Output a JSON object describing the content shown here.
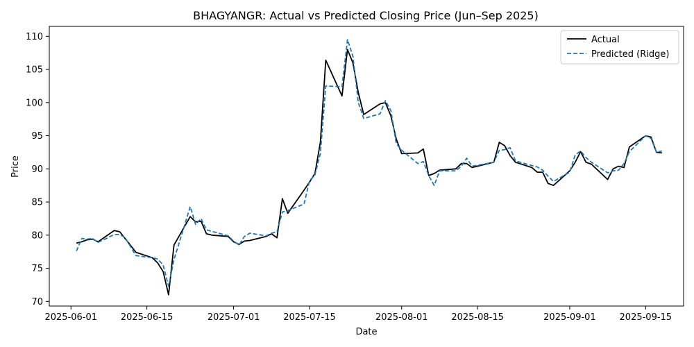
{
  "chart_data": {
    "type": "line",
    "title": "BHAGYANGR: Actual vs Predicted Closing Price (Jun–Sep 2025)",
    "xlabel": "Date",
    "ylabel": "Price",
    "xlim": [
      "2025-05-28",
      "2025-09-22"
    ],
    "ylim": [
      69.3,
      111.5
    ],
    "x_ticks": [
      "2025-06-01",
      "2025-06-15",
      "2025-07-01",
      "2025-07-15",
      "2025-08-01",
      "2025-08-15",
      "2025-09-01",
      "2025-09-15"
    ],
    "y_ticks": [
      70,
      75,
      80,
      85,
      90,
      95,
      100,
      105,
      110
    ],
    "grid": false,
    "legend_position": "top-right",
    "series": [
      {
        "name": "Actual",
        "color": "#000000",
        "style": "solid",
        "points": [
          [
            "2025-06-02",
            78.8
          ],
          [
            "2025-06-03",
            79.0
          ],
          [
            "2025-06-04",
            79.3
          ],
          [
            "2025-06-05",
            79.4
          ],
          [
            "2025-06-06",
            79.0
          ],
          [
            "2025-06-09",
            80.7
          ],
          [
            "2025-06-10",
            80.5
          ],
          [
            "2025-06-13",
            77.4
          ],
          [
            "2025-06-16",
            76.6
          ],
          [
            "2025-06-17",
            75.8
          ],
          [
            "2025-06-18",
            74.5
          ],
          [
            "2025-06-19",
            71.0
          ],
          [
            "2025-06-20",
            78.5
          ],
          [
            "2025-06-23",
            82.8
          ],
          [
            "2025-06-24",
            82.0
          ],
          [
            "2025-06-25",
            82.1
          ],
          [
            "2025-06-26",
            80.2
          ],
          [
            "2025-06-27",
            80.0
          ],
          [
            "2025-06-30",
            79.8
          ],
          [
            "2025-07-01",
            79.0
          ],
          [
            "2025-07-02",
            78.6
          ],
          [
            "2025-07-03",
            79.1
          ],
          [
            "2025-07-04",
            79.2
          ],
          [
            "2025-07-07",
            79.8
          ],
          [
            "2025-07-08",
            80.2
          ],
          [
            "2025-07-09",
            79.6
          ],
          [
            "2025-07-10",
            85.5
          ],
          [
            "2025-07-11",
            83.3
          ],
          [
            "2025-07-14",
            86.8
          ],
          [
            "2025-07-15",
            88.0
          ],
          [
            "2025-07-16",
            89.3
          ],
          [
            "2025-07-17",
            94.0
          ],
          [
            "2025-07-18",
            106.4
          ],
          [
            "2025-07-21",
            101.0
          ],
          [
            "2025-07-22",
            108.0
          ],
          [
            "2025-07-23",
            106.0
          ],
          [
            "2025-07-24",
            101.5
          ],
          [
            "2025-07-25",
            98.2
          ],
          [
            "2025-07-28",
            99.8
          ],
          [
            "2025-07-29",
            100.0
          ],
          [
            "2025-07-30",
            98.0
          ],
          [
            "2025-07-31",
            94.5
          ],
          [
            "2025-08-01",
            92.3
          ],
          [
            "2025-08-04",
            92.4
          ],
          [
            "2025-08-05",
            93.0
          ],
          [
            "2025-08-06",
            89.0
          ],
          [
            "2025-08-07",
            89.3
          ],
          [
            "2025-08-08",
            89.8
          ],
          [
            "2025-08-11",
            90.0
          ],
          [
            "2025-08-12",
            90.8
          ],
          [
            "2025-08-13",
            90.8
          ],
          [
            "2025-08-14",
            90.2
          ],
          [
            "2025-08-18",
            91.0
          ],
          [
            "2025-08-19",
            94.0
          ],
          [
            "2025-08-20",
            93.5
          ],
          [
            "2025-08-21",
            92.0
          ],
          [
            "2025-08-22",
            91.0
          ],
          [
            "2025-08-25",
            90.2
          ],
          [
            "2025-08-26",
            89.5
          ],
          [
            "2025-08-27",
            89.5
          ],
          [
            "2025-08-28",
            87.8
          ],
          [
            "2025-08-29",
            87.5
          ],
          [
            "2025-09-01",
            89.7
          ],
          [
            "2025-09-02",
            91.0
          ],
          [
            "2025-09-03",
            92.6
          ],
          [
            "2025-09-04",
            91.0
          ],
          [
            "2025-09-05",
            90.7
          ],
          [
            "2025-09-08",
            88.4
          ],
          [
            "2025-09-09",
            90.0
          ],
          [
            "2025-09-10",
            90.4
          ],
          [
            "2025-09-11",
            90.2
          ],
          [
            "2025-09-12",
            93.3
          ],
          [
            "2025-09-15",
            95.0
          ],
          [
            "2025-09-16",
            94.8
          ],
          [
            "2025-09-17",
            92.5
          ],
          [
            "2025-09-18",
            92.4
          ]
        ]
      },
      {
        "name": "Predicted (Ridge)",
        "color": "#1f77b4",
        "style": "dashed",
        "points": [
          [
            "2025-06-02",
            77.6
          ],
          [
            "2025-06-03",
            79.5
          ],
          [
            "2025-06-04",
            79.4
          ],
          [
            "2025-06-05",
            79.5
          ],
          [
            "2025-06-06",
            78.9
          ],
          [
            "2025-06-09",
            80.1
          ],
          [
            "2025-06-10",
            80.1
          ],
          [
            "2025-06-11",
            79.6
          ],
          [
            "2025-06-13",
            76.9
          ],
          [
            "2025-06-16",
            76.6
          ],
          [
            "2025-06-17",
            76.4
          ],
          [
            "2025-06-18",
            75.5
          ],
          [
            "2025-06-19",
            72.3
          ],
          [
            "2025-06-20",
            76.3
          ],
          [
            "2025-06-23",
            84.3
          ],
          [
            "2025-06-24",
            81.6
          ],
          [
            "2025-06-25",
            82.5
          ],
          [
            "2025-06-26",
            80.8
          ],
          [
            "2025-06-30",
            79.9
          ],
          [
            "2025-07-01",
            79.1
          ],
          [
            "2025-07-02",
            78.5
          ],
          [
            "2025-07-03",
            79.8
          ],
          [
            "2025-07-04",
            80.3
          ],
          [
            "2025-07-07",
            79.9
          ],
          [
            "2025-07-08",
            80.3
          ],
          [
            "2025-07-09",
            80.5
          ],
          [
            "2025-07-10",
            83.5
          ],
          [
            "2025-07-11",
            83.7
          ],
          [
            "2025-07-14",
            84.7
          ],
          [
            "2025-07-15",
            88.2
          ],
          [
            "2025-07-16",
            89.1
          ],
          [
            "2025-07-17",
            92.3
          ],
          [
            "2025-07-18",
            102.5
          ],
          [
            "2025-07-21",
            102.4
          ],
          [
            "2025-07-22",
            109.5
          ],
          [
            "2025-07-23",
            107.0
          ],
          [
            "2025-07-24",
            100.0
          ],
          [
            "2025-07-25",
            97.6
          ],
          [
            "2025-07-28",
            98.3
          ],
          [
            "2025-07-29",
            100.3
          ],
          [
            "2025-07-30",
            98.8
          ],
          [
            "2025-07-31",
            93.8
          ],
          [
            "2025-08-01",
            92.8
          ],
          [
            "2025-08-04",
            90.8
          ],
          [
            "2025-08-05",
            91.1
          ],
          [
            "2025-08-06",
            89.0
          ],
          [
            "2025-08-07",
            87.5
          ],
          [
            "2025-08-08",
            89.7
          ],
          [
            "2025-08-11",
            89.7
          ],
          [
            "2025-08-12",
            90.4
          ],
          [
            "2025-08-13",
            91.6
          ],
          [
            "2025-08-14",
            90.4
          ],
          [
            "2025-08-18",
            91.0
          ],
          [
            "2025-08-19",
            92.8
          ],
          [
            "2025-08-20",
            92.9
          ],
          [
            "2025-08-21",
            93.2
          ],
          [
            "2025-08-22",
            91.2
          ],
          [
            "2025-08-25",
            90.5
          ],
          [
            "2025-08-26",
            90.3
          ],
          [
            "2025-08-27",
            89.8
          ],
          [
            "2025-08-28",
            88.9
          ],
          [
            "2025-08-29",
            88.1
          ],
          [
            "2025-09-01",
            89.5
          ],
          [
            "2025-09-02",
            92.1
          ],
          [
            "2025-09-03",
            92.7
          ],
          [
            "2025-09-04",
            91.7
          ],
          [
            "2025-09-05",
            91.0
          ],
          [
            "2025-09-08",
            89.4
          ],
          [
            "2025-09-09",
            89.7
          ],
          [
            "2025-09-10",
            89.8
          ],
          [
            "2025-09-11",
            90.8
          ],
          [
            "2025-09-12",
            92.6
          ],
          [
            "2025-09-15",
            95.0
          ],
          [
            "2025-09-16",
            94.6
          ],
          [
            "2025-09-17",
            92.5
          ],
          [
            "2025-09-18",
            92.7
          ]
        ]
      }
    ]
  }
}
